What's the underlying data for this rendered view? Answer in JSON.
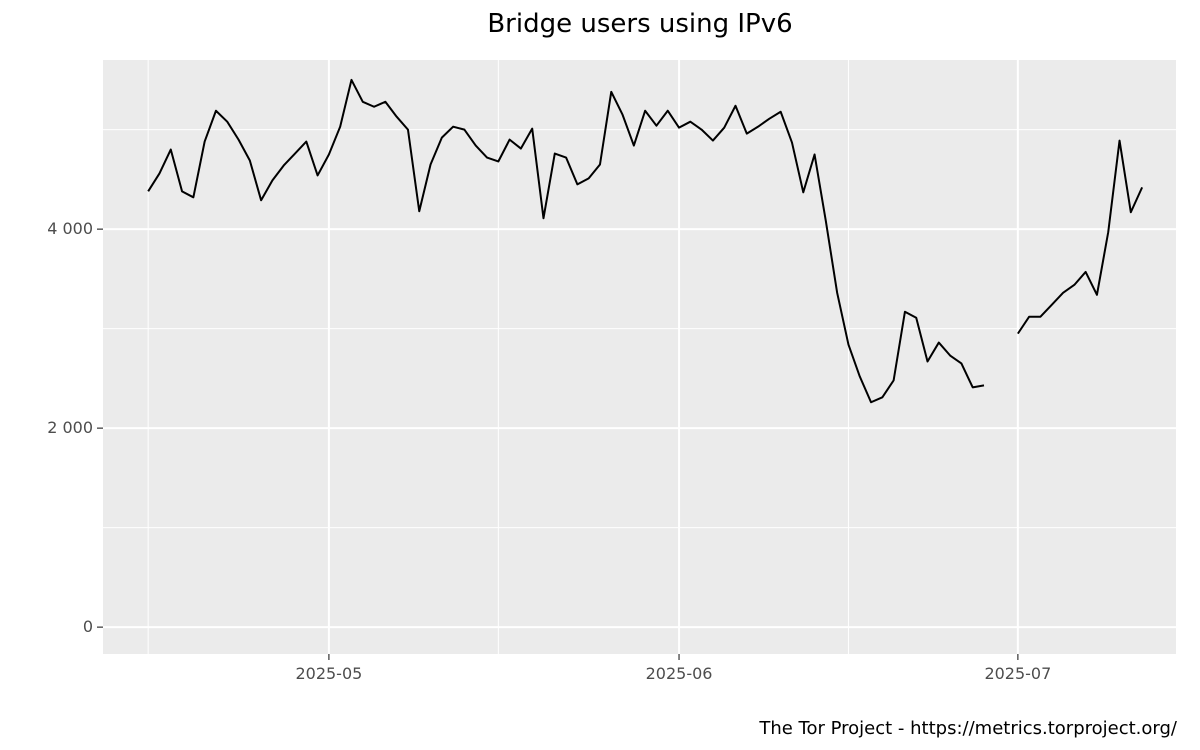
{
  "chart_data": {
    "type": "line",
    "title": "Bridge users using IPv6",
    "xlabel": "",
    "ylabel": "",
    "caption": "The Tor Project - https://metrics.torproject.org/",
    "ylim": [
      -270,
      5700
    ],
    "xlim": [
      "2025-04-11",
      "2025-07-15"
    ],
    "y_ticks": [
      {
        "value": 0,
        "label": "0"
      },
      {
        "value": 2000,
        "label": "2 000"
      },
      {
        "value": 4000,
        "label": "4 000"
      }
    ],
    "x_ticks": [
      {
        "date": "2025-05-01",
        "label": "2025-05"
      },
      {
        "date": "2025-06-01",
        "label": "2025-06"
      },
      {
        "date": "2025-07-01",
        "label": "2025-07"
      }
    ],
    "grid": true,
    "background_color": "#ebebeb",
    "grid_color": "#ffffff",
    "line_color": "#000000",
    "series": [
      {
        "segments": [
          [
            [
              "2025-04-15",
              4380
            ],
            [
              "2025-04-16",
              4560
            ],
            [
              "2025-04-17",
              4800
            ],
            [
              "2025-04-18",
              4380
            ],
            [
              "2025-04-19",
              4320
            ],
            [
              "2025-04-20",
              4880
            ],
            [
              "2025-04-21",
              5190
            ],
            [
              "2025-04-22",
              5080
            ],
            [
              "2025-04-23",
              4900
            ],
            [
              "2025-04-24",
              4690
            ],
            [
              "2025-04-25",
              4290
            ],
            [
              "2025-04-26",
              4490
            ],
            [
              "2025-04-27",
              4640
            ],
            [
              "2025-04-28",
              4760
            ],
            [
              "2025-04-29",
              4880
            ],
            [
              "2025-04-30",
              4540
            ],
            [
              "2025-05-01",
              4750
            ],
            [
              "2025-05-02",
              5030
            ],
            [
              "2025-05-03",
              5500
            ],
            [
              "2025-05-04",
              5280
            ],
            [
              "2025-05-05",
              5230
            ],
            [
              "2025-05-06",
              5280
            ],
            [
              "2025-05-07",
              5130
            ],
            [
              "2025-05-08",
              5000
            ],
            [
              "2025-05-09",
              4180
            ],
            [
              "2025-05-10",
              4650
            ],
            [
              "2025-05-11",
              4920
            ],
            [
              "2025-05-12",
              5030
            ],
            [
              "2025-05-13",
              5000
            ],
            [
              "2025-05-14",
              4840
            ],
            [
              "2025-05-15",
              4720
            ],
            [
              "2025-05-16",
              4680
            ],
            [
              "2025-05-17",
              4900
            ],
            [
              "2025-05-18",
              4810
            ],
            [
              "2025-05-19",
              5010
            ],
            [
              "2025-05-20",
              4110
            ],
            [
              "2025-05-21",
              4760
            ],
            [
              "2025-05-22",
              4720
            ],
            [
              "2025-05-23",
              4450
            ],
            [
              "2025-05-24",
              4510
            ],
            [
              "2025-05-25",
              4650
            ],
            [
              "2025-05-26",
              5380
            ],
            [
              "2025-05-27",
              5150
            ],
            [
              "2025-05-28",
              4840
            ],
            [
              "2025-05-29",
              5190
            ],
            [
              "2025-05-30",
              5040
            ],
            [
              "2025-05-31",
              5190
            ],
            [
              "2025-06-01",
              5020
            ],
            [
              "2025-06-02",
              5080
            ],
            [
              "2025-06-03",
              5000
            ],
            [
              "2025-06-04",
              4890
            ],
            [
              "2025-06-05",
              5020
            ],
            [
              "2025-06-06",
              5240
            ],
            [
              "2025-06-07",
              4960
            ],
            [
              "2025-06-08",
              5030
            ],
            [
              "2025-06-09",
              5110
            ],
            [
              "2025-06-10",
              5180
            ],
            [
              "2025-06-11",
              4870
            ],
            [
              "2025-06-12",
              4370
            ],
            [
              "2025-06-13",
              4750
            ],
            [
              "2025-06-14",
              4080
            ],
            [
              "2025-06-15",
              3360
            ],
            [
              "2025-06-16",
              2840
            ],
            [
              "2025-06-17",
              2520
            ],
            [
              "2025-06-18",
              2260
            ],
            [
              "2025-06-19",
              2310
            ],
            [
              "2025-06-20",
              2480
            ],
            [
              "2025-06-21",
              3170
            ],
            [
              "2025-06-22",
              3110
            ],
            [
              "2025-06-23",
              2670
            ],
            [
              "2025-06-24",
              2860
            ],
            [
              "2025-06-25",
              2730
            ],
            [
              "2025-06-26",
              2650
            ],
            [
              "2025-06-27",
              2410
            ],
            [
              "2025-06-28",
              2430
            ]
          ],
          [
            [
              "2025-07-01",
              2950
            ],
            [
              "2025-07-02",
              3120
            ],
            [
              "2025-07-03",
              3120
            ],
            [
              "2025-07-04",
              3240
            ],
            [
              "2025-07-05",
              3360
            ],
            [
              "2025-07-06",
              3440
            ],
            [
              "2025-07-07",
              3570
            ],
            [
              "2025-07-08",
              3340
            ],
            [
              "2025-07-09",
              3970
            ],
            [
              "2025-07-10",
              4890
            ],
            [
              "2025-07-11",
              4170
            ],
            [
              "2025-07-12",
              4420
            ]
          ]
        ]
      }
    ]
  }
}
